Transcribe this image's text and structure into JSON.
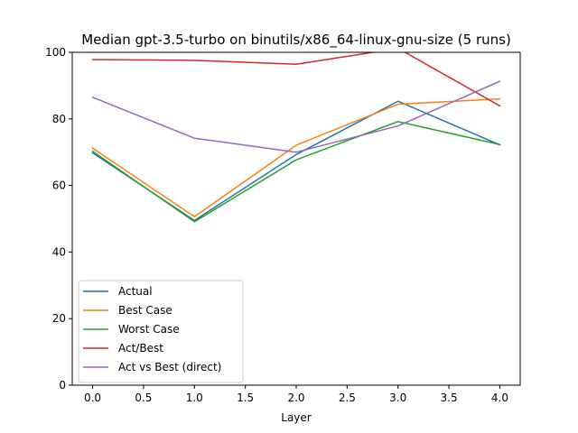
{
  "chart_data": {
    "type": "line",
    "title": "Median gpt-3.5-turbo on binutils/x86_64-linux-gnu-size (5 runs)",
    "xlabel": "Layer",
    "ylabel": "",
    "xlim": [
      -0.2,
      4.2
    ],
    "ylim": [
      0,
      100
    ],
    "xticks": [
      0.0,
      0.5,
      1.0,
      1.5,
      2.0,
      2.5,
      3.0,
      3.5,
      4.0
    ],
    "xtick_labels": [
      "0.0",
      "0.5",
      "1.0",
      "1.5",
      "2.0",
      "2.5",
      "3.0",
      "3.5",
      "4.0"
    ],
    "yticks": [
      0,
      20,
      40,
      60,
      80,
      100
    ],
    "ytick_labels": [
      "0",
      "20",
      "40",
      "60",
      "80",
      "100"
    ],
    "grid": false,
    "legend_position": "lower-left",
    "x": [
      0,
      1,
      2,
      3,
      4
    ],
    "series": [
      {
        "name": "Actual",
        "color": "#1f77b4",
        "values": [
          69.8,
          49.5,
          69.3,
          85.3,
          72.2
        ]
      },
      {
        "name": "Best Case",
        "color": "#ff7f0e",
        "values": [
          71.2,
          50.6,
          72.1,
          84.4,
          86.0
        ]
      },
      {
        "name": "Worst Case",
        "color": "#2ca02c",
        "values": [
          70.3,
          49.1,
          67.7,
          79.2,
          72.3
        ]
      },
      {
        "name": "Act/Best",
        "color": "#d62728",
        "values": [
          97.8,
          97.6,
          96.4,
          101.2,
          83.9
        ]
      },
      {
        "name": "Act vs Best (direct)",
        "color": "#9467bd",
        "values": [
          86.5,
          74.2,
          70.0,
          77.9,
          91.3
        ]
      }
    ]
  }
}
